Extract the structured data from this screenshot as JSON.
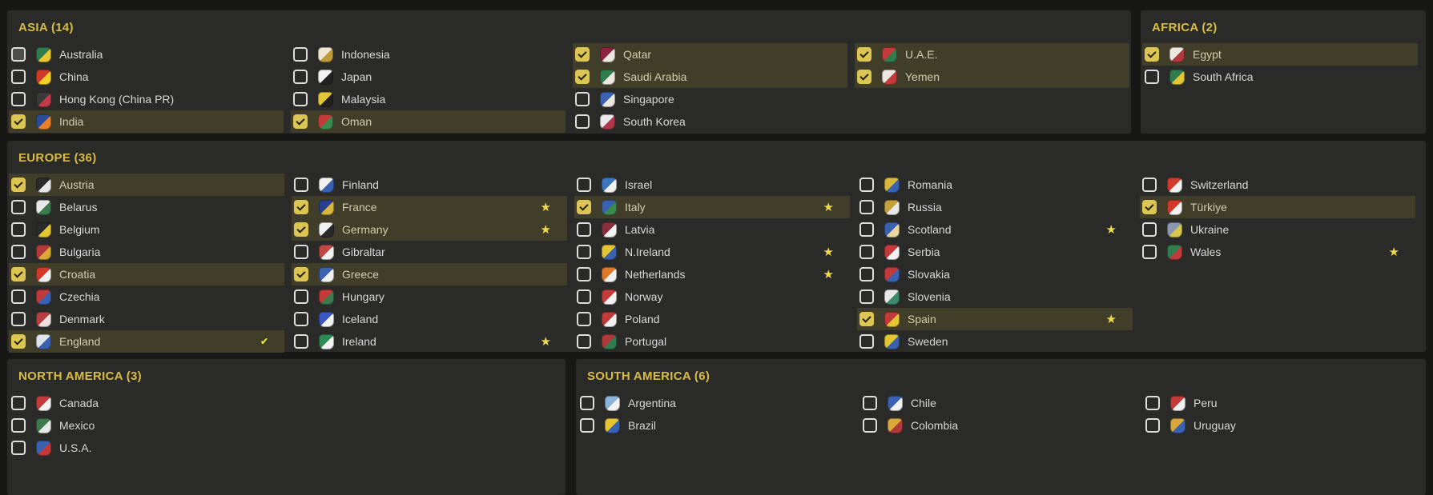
{
  "ui": {
    "background": "#171716",
    "panel_background": "#2a2a29",
    "highlight_row": "#403d29",
    "header_color": "#d8bc42",
    "checkbox_checked": "#dcc553",
    "checkbox_border": "#dedede",
    "star_color": "#eed94f",
    "mini_check_color": "#dde23c",
    "label_color": "#d8d8d8",
    "label_selected_color": "#d3cdae",
    "star_glyph": "★",
    "mini_check_glyph": "✔"
  },
  "sections": [
    {
      "id": "asia",
      "title": "ASIA (14)",
      "columns": [
        [
          {
            "name": "Australia",
            "checked": false,
            "hover": true,
            "crest": [
              "#2f7d4e",
              "#e8c532"
            ]
          },
          {
            "name": "China",
            "checked": false,
            "crest": [
              "#d2392b",
              "#f3cf2a"
            ]
          },
          {
            "name": "Hong Kong (China PR)",
            "checked": false,
            "crest": [
              "#3a3a3a",
              "#c43b47"
            ]
          },
          {
            "name": "India",
            "checked": true,
            "crest": [
              "#2a4d9b",
              "#e87f2a"
            ]
          }
        ],
        [
          {
            "name": "Indonesia",
            "checked": false,
            "crest": [
              "#efe6cf",
              "#bf9a3a"
            ]
          },
          {
            "name": "Japan",
            "checked": false,
            "crest": [
              "#f2f2f2",
              "#222222"
            ]
          },
          {
            "name": "Malaysia",
            "checked": false,
            "crest": [
              "#e4c534",
              "#1f1f1f"
            ]
          },
          {
            "name": "Oman",
            "checked": true,
            "crest": [
              "#c23a3a",
              "#3a8a4d"
            ]
          }
        ],
        [
          {
            "name": "Qatar",
            "checked": true,
            "crest": [
              "#8a2240",
              "#ece8e0"
            ]
          },
          {
            "name": "Saudi Arabia",
            "checked": true,
            "crest": [
              "#2f7d4e",
              "#ece8e0"
            ]
          },
          {
            "name": "Singapore",
            "checked": false,
            "crest": [
              "#3a62b0",
              "#ece8e0"
            ]
          },
          {
            "name": "South Korea",
            "checked": false,
            "crest": [
              "#ece8ee",
              "#b0384a"
            ]
          }
        ],
        [
          {
            "name": "U.A.E.",
            "checked": true,
            "crest": [
              "#c23a3a",
              "#2f7d4e"
            ]
          },
          {
            "name": "Yemen",
            "checked": true,
            "crest": [
              "#ece8e0",
              "#c23a3a"
            ]
          }
        ]
      ]
    },
    {
      "id": "africa",
      "title": "AFRICA (2)",
      "columns": [
        [
          {
            "name": "Egypt",
            "checked": true,
            "crest": [
              "#ece8e0",
              "#b03a3a"
            ]
          },
          {
            "name": "South Africa",
            "checked": false,
            "crest": [
              "#2f7d4e",
              "#e4c534"
            ]
          }
        ]
      ]
    },
    {
      "id": "europe",
      "title": "EUROPE (36)",
      "columns": [
        [
          {
            "name": "Austria",
            "checked": true,
            "crest": [
              "#2a2a2a",
              "#e8e8e8"
            ]
          },
          {
            "name": "Belarus",
            "checked": false,
            "crest": [
              "#e8e8e8",
              "#3a7a4d"
            ]
          },
          {
            "name": "Belgium",
            "checked": false,
            "crest": [
              "#2a2a2a",
              "#e4c534"
            ]
          },
          {
            "name": "Bulgaria",
            "checked": false,
            "crest": [
              "#b03a3a",
              "#d8a83a"
            ]
          },
          {
            "name": "Croatia",
            "checked": true,
            "crest": [
              "#d2392b",
              "#f2f2f2"
            ]
          },
          {
            "name": "Czechia",
            "checked": false,
            "crest": [
              "#c23a3a",
              "#3a62b0"
            ]
          },
          {
            "name": "Denmark",
            "checked": false,
            "crest": [
              "#b84040",
              "#f0e0e0"
            ]
          },
          {
            "name": "England",
            "checked": true,
            "mini_check": true,
            "crest": [
              "#dfe4f0",
              "#3a62b0"
            ]
          }
        ],
        [
          {
            "name": "Finland",
            "checked": false,
            "crest": [
              "#f2f2f2",
              "#3a62b0"
            ]
          },
          {
            "name": "France",
            "checked": true,
            "star": true,
            "crest": [
              "#2a3f8e",
              "#d8b83a"
            ]
          },
          {
            "name": "Germany",
            "checked": true,
            "star": true,
            "crest": [
              "#f2f2f2",
              "#2a2a2a"
            ]
          },
          {
            "name": "Gibraltar",
            "checked": false,
            "crest": [
              "#c24848",
              "#f2f2f2"
            ]
          },
          {
            "name": "Greece",
            "checked": true,
            "crest": [
              "#3a62b0",
              "#f2f2f2"
            ]
          },
          {
            "name": "Hungary",
            "checked": false,
            "crest": [
              "#c23a3a",
              "#3a7a4d"
            ]
          },
          {
            "name": "Iceland",
            "checked": false,
            "crest": [
              "#3a56c2",
              "#f2f2f2"
            ]
          },
          {
            "name": "Ireland",
            "checked": false,
            "star": true,
            "crest": [
              "#2f8a54",
              "#f2f2f2"
            ]
          }
        ],
        [
          {
            "name": "Israel",
            "checked": false,
            "crest": [
              "#3a76c2",
              "#f2f2f2"
            ]
          },
          {
            "name": "Italy",
            "checked": true,
            "star": true,
            "crest": [
              "#3a62b0",
              "#3a8a4d"
            ]
          },
          {
            "name": "Latvia",
            "checked": false,
            "crest": [
              "#8a2f3d",
              "#f2f2f2"
            ]
          },
          {
            "name": "N.Ireland",
            "checked": false,
            "star": true,
            "crest": [
              "#e4c534",
              "#3a62b0"
            ]
          },
          {
            "name": "Netherlands",
            "checked": false,
            "star": true,
            "crest": [
              "#e07828",
              "#f2f2f2"
            ]
          },
          {
            "name": "Norway",
            "checked": false,
            "crest": [
              "#c23a3a",
              "#f2f2f2"
            ]
          },
          {
            "name": "Poland",
            "checked": false,
            "crest": [
              "#c23a3a",
              "#f2f2f2"
            ]
          },
          {
            "name": "Portugal",
            "checked": false,
            "crest": [
              "#b03a3a",
              "#2f7d4e"
            ]
          }
        ],
        [
          {
            "name": "Romania",
            "checked": false,
            "crest": [
              "#d8b83a",
              "#3a62b0"
            ]
          },
          {
            "name": "Russia",
            "checked": false,
            "crest": [
              "#c2a03a",
              "#e8e8e8"
            ]
          },
          {
            "name": "Scotland",
            "checked": false,
            "star": true,
            "crest": [
              "#3a62b0",
              "#e8d8a0"
            ]
          },
          {
            "name": "Serbia",
            "checked": false,
            "crest": [
              "#c23a3a",
              "#f2f2f2"
            ]
          },
          {
            "name": "Slovakia",
            "checked": false,
            "crest": [
              "#c23a3a",
              "#3a62b0"
            ]
          },
          {
            "name": "Slovenia",
            "checked": false,
            "crest": [
              "#e8e8e8",
              "#3a8a6b"
            ]
          },
          {
            "name": "Spain",
            "checked": true,
            "star": true,
            "crest": [
              "#c23a3a",
              "#e4c534"
            ]
          },
          {
            "name": "Sweden",
            "checked": false,
            "crest": [
              "#e4c534",
              "#3a62b0"
            ]
          }
        ],
        [
          {
            "name": "Switzerland",
            "checked": false,
            "crest": [
              "#d2392b",
              "#f2f2f2"
            ]
          },
          {
            "name": "Türkiye",
            "checked": true,
            "crest": [
              "#d2392b",
              "#f2f2f2"
            ]
          },
          {
            "name": "Ukraine",
            "checked": false,
            "crest": [
              "#8a98b0",
              "#d8c84a"
            ]
          },
          {
            "name": "Wales",
            "checked": false,
            "star": true,
            "crest": [
              "#2f7d4e",
              "#c23a3a"
            ]
          }
        ]
      ]
    },
    {
      "id": "north-america",
      "title": "NORTH AMERICA (3)",
      "columns": [
        [
          {
            "name": "Canada",
            "checked": false,
            "crest": [
              "#c23a3a",
              "#f2f2f2"
            ]
          },
          {
            "name": "Mexico",
            "checked": false,
            "crest": [
              "#3a7a4d",
              "#e8e8e8"
            ]
          },
          {
            "name": "U.S.A.",
            "checked": false,
            "crest": [
              "#3a62b0",
              "#c23a3a"
            ]
          }
        ]
      ]
    },
    {
      "id": "south-america",
      "title": "SOUTH AMERICA (6)",
      "columns": [
        [
          {
            "name": "Argentina",
            "checked": false,
            "crest": [
              "#8ab4d8",
              "#f2f2f2"
            ]
          },
          {
            "name": "Brazil",
            "checked": false,
            "crest": [
              "#e4c534",
              "#3a62b0"
            ]
          }
        ],
        [
          {
            "name": "Chile",
            "checked": false,
            "crest": [
              "#3a62b0",
              "#f2f2f2"
            ]
          },
          {
            "name": "Colombia",
            "checked": false,
            "crest": [
              "#d8a83a",
              "#b03a3a"
            ]
          }
        ],
        [
          {
            "name": "Peru",
            "checked": false,
            "crest": [
              "#c23a3a",
              "#f2f2f2"
            ]
          },
          {
            "name": "Uruguay",
            "checked": false,
            "crest": [
              "#d8a83a",
              "#3a62b0"
            ]
          }
        ]
      ]
    }
  ]
}
